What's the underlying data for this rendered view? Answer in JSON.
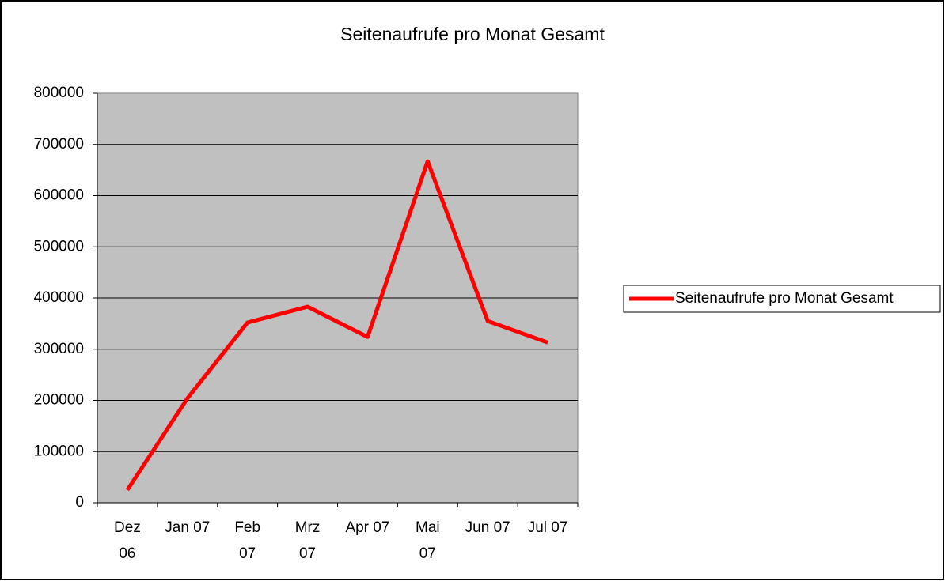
{
  "chart_data": {
    "type": "line",
    "title": "Seitenaufrufe pro Monat Gesamt",
    "categories": [
      "Dez 06",
      "Jan 07",
      "Feb 07",
      "Mrz 07",
      "Apr 07",
      "Mai 07",
      "Jun 07",
      "Jul 07"
    ],
    "series": [
      {
        "name": "Seitenaufrufe pro Monat Gesamt",
        "color": "#ff0000",
        "values": [
          25000,
          204000,
          352000,
          383000,
          324000,
          667000,
          355000,
          313000
        ]
      }
    ],
    "ylim": [
      0,
      800000
    ],
    "yticks": [
      0,
      100000,
      200000,
      300000,
      400000,
      500000,
      600000,
      700000,
      800000
    ],
    "grid": true,
    "legend": "right"
  }
}
